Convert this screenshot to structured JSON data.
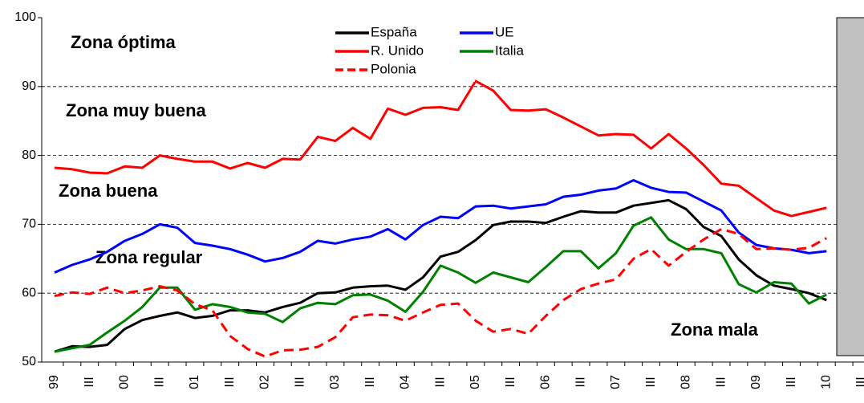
{
  "chart_data": {
    "type": "line",
    "categories": [
      "99",
      null,
      "III",
      null,
      "00",
      null,
      "III",
      null,
      "01",
      null,
      "III",
      null,
      "02",
      null,
      "III",
      null,
      "03",
      null,
      "III",
      null,
      "04",
      null,
      "III",
      null,
      "05",
      null,
      "III",
      null,
      "06",
      null,
      "III",
      null,
      "07",
      null,
      "III",
      null,
      "08",
      null,
      "III",
      null,
      "09",
      null,
      "III",
      null,
      "10",
      null,
      "III"
    ],
    "series": [
      {
        "name": "España",
        "color": "#000000",
        "style": "solid",
        "values": [
          51.5,
          52.3,
          52.2,
          52.5,
          54.8,
          56.1,
          56.7,
          57.2,
          56.4,
          56.7,
          57.5,
          57.5,
          57.2,
          58.0,
          58.6,
          60.0,
          60.1,
          60.8,
          61.0,
          61.1,
          60.5,
          62.3,
          65.3,
          66.0,
          67.7,
          69.9,
          70.4,
          70.4,
          70.2,
          71.1,
          71.9,
          71.7,
          71.7,
          72.7,
          73.1,
          73.5,
          72.2,
          69.6,
          68.3,
          64.9,
          62.6,
          61.1,
          60.6,
          60.0,
          59.0,
          null,
          null
        ]
      },
      {
        "name": "UE",
        "color": "#0000ff",
        "style": "solid",
        "values": [
          63.0,
          64.1,
          64.9,
          66.0,
          67.6,
          68.6,
          70.0,
          69.5,
          67.3,
          66.9,
          66.4,
          65.6,
          64.6,
          65.1,
          66.0,
          67.6,
          67.2,
          67.8,
          68.2,
          69.3,
          67.8,
          69.9,
          71.1,
          70.9,
          72.6,
          72.7,
          72.3,
          72.6,
          72.9,
          74.0,
          74.3,
          74.9,
          75.2,
          76.4,
          75.3,
          74.7,
          74.6,
          73.3,
          72.0,
          68.8,
          67.0,
          66.5,
          66.3,
          65.8,
          66.1,
          null,
          null
        ]
      },
      {
        "name": "R. Unido",
        "color": "#ff0000",
        "style": "solid",
        "values": [
          78.2,
          78.0,
          77.5,
          77.4,
          78.4,
          78.2,
          80.0,
          79.5,
          79.1,
          79.1,
          78.1,
          78.9,
          78.2,
          79.5,
          79.4,
          82.7,
          82.1,
          84.0,
          82.4,
          86.8,
          85.9,
          86.9,
          87.0,
          86.6,
          90.8,
          89.4,
          86.6,
          86.5,
          86.7,
          85.5,
          84.2,
          82.9,
          83.1,
          83.0,
          81.0,
          83.1,
          81.0,
          78.6,
          75.9,
          75.6,
          73.8,
          72.0,
          71.2,
          71.8,
          72.4,
          null,
          null
        ]
      },
      {
        "name": "Italia",
        "color": "#008000",
        "style": "solid",
        "values": [
          51.5,
          52.0,
          52.5,
          54.3,
          56.0,
          58.0,
          60.8,
          60.8,
          57.6,
          58.4,
          58.0,
          57.2,
          57.0,
          55.8,
          57.8,
          58.6,
          58.4,
          59.7,
          59.8,
          58.9,
          57.3,
          60.2,
          64.0,
          63.0,
          61.5,
          63.0,
          62.3,
          61.6,
          63.8,
          66.1,
          66.1,
          63.6,
          65.8,
          69.8,
          71.0,
          67.8,
          66.4,
          66.4,
          65.8,
          61.3,
          60.1,
          61.6,
          61.4,
          58.5,
          59.8,
          null,
          null
        ]
      },
      {
        "name": "Polonia",
        "color": "#ff0000",
        "style": "dashed",
        "values": [
          59.6,
          60.1,
          59.9,
          60.8,
          60.0,
          60.4,
          61.0,
          60.4,
          58.4,
          57.5,
          53.8,
          51.9,
          50.8,
          51.7,
          51.8,
          52.2,
          53.6,
          56.5,
          56.9,
          56.8,
          56.0,
          57.2,
          58.3,
          58.5,
          56.0,
          54.4,
          54.8,
          54.1,
          56.7,
          59.0,
          60.6,
          61.4,
          62.0,
          65.0,
          66.4,
          64.0,
          66.0,
          67.8,
          69.3,
          68.6,
          66.4,
          66.5,
          66.3,
          66.6,
          68.0,
          null,
          null
        ]
      }
    ],
    "annotations": [
      "Zona óptima",
      "Zona muy buena",
      "Zona buena",
      "Zona regular",
      "Zona mala"
    ],
    "ylim": [
      50,
      100
    ],
    "yticks": [
      50,
      60,
      70,
      80,
      90,
      100
    ],
    "grid": true,
    "legend": "top"
  }
}
